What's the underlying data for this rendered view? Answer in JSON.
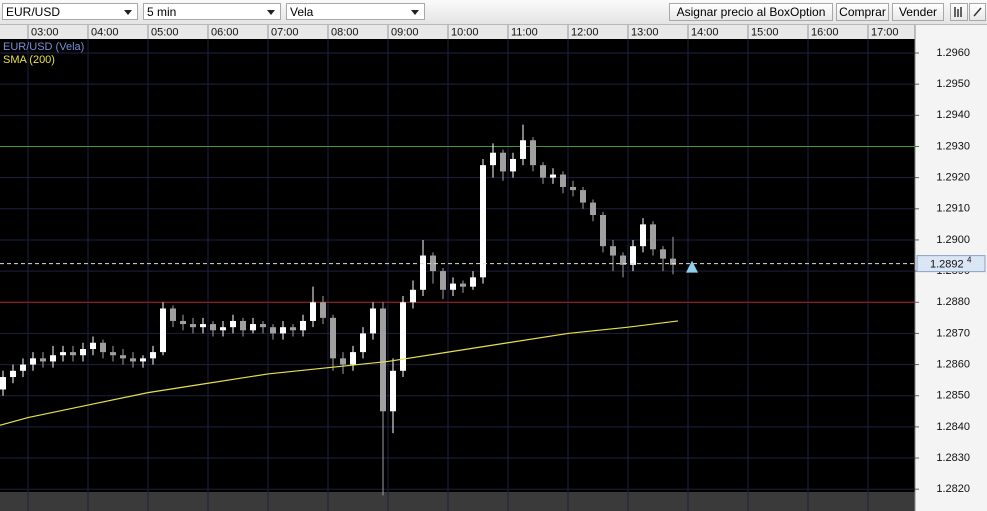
{
  "toolbar": {
    "symbol": "EUR/USD",
    "interval": "5 min",
    "chart_style": "Vela",
    "buttons": [
      "Asignar precio al BoxOption",
      "Comprar",
      "Vender"
    ]
  },
  "chart_data": {
    "type": "candlestick",
    "xticks": [
      "03:00",
      "04:00",
      "05:00",
      "06:00",
      "07:00",
      "08:00",
      "09:00",
      "10:00",
      "11:00",
      "12:00",
      "13:00",
      "14:00",
      "15:00",
      "16:00",
      "17:00"
    ],
    "ylim": [
      1.2813,
      1.29645
    ],
    "yticks": [
      {
        "value": 1.282,
        "label": "1.2820"
      },
      {
        "value": 1.283,
        "label": "1.2830"
      },
      {
        "value": 1.284,
        "label": "1.2840"
      },
      {
        "value": 1.285,
        "label": "1.2850"
      },
      {
        "value": 1.286,
        "label": "1.2860"
      },
      {
        "value": 1.287,
        "label": "1.2870"
      },
      {
        "value": 1.288,
        "label": "1.2880"
      },
      {
        "value": 1.289,
        "label": "1.2890"
      },
      {
        "value": 1.29,
        "label": "1.2900"
      },
      {
        "value": 1.291,
        "label": "1.2910"
      },
      {
        "value": 1.292,
        "label": "1.2920"
      },
      {
        "value": 1.293,
        "label": "1.2930"
      },
      {
        "value": 1.294,
        "label": "1.2940"
      },
      {
        "value": 1.295,
        "label": "1.2950"
      },
      {
        "value": 1.296,
        "label": "1.2960"
      }
    ],
    "grid": true,
    "series": [
      {
        "name": "EUR/USD (Vela)",
        "type": "candlestick",
        "color": "#7b8fd8",
        "up_color": "#ffffff",
        "down_color": "#a0a0a0",
        "x": [
          "02:20",
          "02:30",
          "02:40",
          "02:50",
          "03:00",
          "03:10",
          "03:20",
          "03:30",
          "03:40",
          "03:50",
          "04:00",
          "04:10",
          "04:20",
          "04:30",
          "04:40",
          "04:50",
          "05:00",
          "05:10",
          "05:20",
          "05:30",
          "05:40",
          "05:50",
          "06:00",
          "06:10",
          "06:20",
          "06:30",
          "06:40",
          "06:50",
          "07:00",
          "07:10",
          "07:20",
          "07:30",
          "07:40",
          "07:50",
          "08:00",
          "08:10",
          "08:20",
          "08:30",
          "08:40",
          "08:50",
          "09:00",
          "09:10",
          "09:20",
          "09:30",
          "09:40",
          "09:50",
          "10:00",
          "10:10",
          "10:20",
          "10:30",
          "10:40",
          "10:50",
          "11:00",
          "11:10",
          "11:20",
          "11:30",
          "11:40",
          "11:50",
          "12:00",
          "12:10",
          "12:20",
          "12:30",
          "12:40",
          "12:50",
          "13:00",
          "13:10",
          "13:20",
          "13:30",
          "13:40"
        ],
        "open": [
          1.2848,
          1.2852,
          1.2856,
          1.2858,
          1.286,
          1.2862,
          1.2861,
          1.2863,
          1.2864,
          1.2863,
          1.2865,
          1.2867,
          1.2864,
          1.2863,
          1.2862,
          1.2861,
          1.2862,
          1.2864,
          1.2878,
          1.2874,
          1.2873,
          1.2872,
          1.2873,
          1.2871,
          1.2872,
          1.2874,
          1.2871,
          1.2873,
          1.2872,
          1.287,
          1.2872,
          1.2871,
          1.2874,
          1.288,
          1.2875,
          1.2862,
          1.286,
          1.2864,
          1.287,
          1.2878,
          1.2845,
          1.2858,
          1.288,
          1.2884,
          1.2895,
          1.289,
          1.2884,
          1.2886,
          1.2885,
          1.2888,
          1.2924,
          1.2928,
          1.2922,
          1.2926,
          1.2932,
          1.2924,
          1.292,
          1.2921,
          1.2917,
          1.2916,
          1.2912,
          1.2908,
          1.2898,
          1.2895,
          1.2892,
          1.2898,
          1.2905,
          1.2897,
          1.2894
        ],
        "high": [
          1.2854,
          1.2858,
          1.286,
          1.2862,
          1.2864,
          1.2864,
          1.2866,
          1.2866,
          1.2866,
          1.2867,
          1.2869,
          1.2868,
          1.2866,
          1.2865,
          1.2864,
          1.2863,
          1.2866,
          1.288,
          1.2879,
          1.2876,
          1.2875,
          1.2875,
          1.2874,
          1.2874,
          1.2876,
          1.2875,
          1.2875,
          1.2874,
          1.2873,
          1.2874,
          1.2873,
          1.2876,
          1.2885,
          1.2882,
          1.2876,
          1.2864,
          1.2866,
          1.2872,
          1.288,
          1.288,
          1.2862,
          1.2882,
          1.2887,
          1.29,
          1.2896,
          1.2891,
          1.2888,
          1.2887,
          1.289,
          1.2926,
          1.2931,
          1.2929,
          1.2928,
          1.2937,
          1.2933,
          1.2925,
          1.2923,
          1.2922,
          1.2919,
          1.2917,
          1.2913,
          1.2909,
          1.29,
          1.2896,
          1.29,
          1.2907,
          1.2906,
          1.2898,
          1.2901
        ],
        "low": [
          1.2844,
          1.285,
          1.2854,
          1.2856,
          1.2858,
          1.2859,
          1.2859,
          1.2861,
          1.2861,
          1.2861,
          1.2863,
          1.2862,
          1.2861,
          1.286,
          1.2859,
          1.2859,
          1.286,
          1.2863,
          1.2872,
          1.2871,
          1.287,
          1.287,
          1.2869,
          1.2869,
          1.287,
          1.2869,
          1.287,
          1.287,
          1.2868,
          1.2868,
          1.2869,
          1.2869,
          1.2872,
          1.2873,
          1.2858,
          1.2857,
          1.2858,
          1.2862,
          1.2868,
          1.2818,
          1.2838,
          1.2856,
          1.2878,
          1.2882,
          1.2886,
          1.2881,
          1.2882,
          1.2883,
          1.2884,
          1.2886,
          1.292,
          1.2919,
          1.292,
          1.2924,
          1.2922,
          1.2918,
          1.2918,
          1.2915,
          1.2914,
          1.291,
          1.2906,
          1.2896,
          1.289,
          1.2888,
          1.289,
          1.2896,
          1.2895,
          1.289,
          1.2889
        ],
        "close": [
          1.2852,
          1.2856,
          1.2858,
          1.286,
          1.2862,
          1.2861,
          1.2863,
          1.2864,
          1.2863,
          1.2865,
          1.2867,
          1.2864,
          1.2863,
          1.2862,
          1.2861,
          1.2862,
          1.2864,
          1.2878,
          1.2874,
          1.2873,
          1.2872,
          1.2873,
          1.2871,
          1.2872,
          1.2874,
          1.2871,
          1.2873,
          1.2872,
          1.287,
          1.2872,
          1.2871,
          1.2874,
          1.288,
          1.2875,
          1.2862,
          1.286,
          1.2864,
          1.287,
          1.2878,
          1.2845,
          1.2858,
          1.288,
          1.2884,
          1.2895,
          1.289,
          1.2884,
          1.2886,
          1.2885,
          1.2888,
          1.2924,
          1.2928,
          1.2922,
          1.2926,
          1.2932,
          1.2924,
          1.292,
          1.2921,
          1.2917,
          1.2916,
          1.2912,
          1.2908,
          1.2898,
          1.2895,
          1.2892,
          1.2898,
          1.2905,
          1.2897,
          1.2894,
          1.2892
        ]
      },
      {
        "name": "SMA (200)",
        "type": "line",
        "color": "#e8e04a",
        "x": [
          "02:15",
          "03:00",
          "04:00",
          "05:00",
          "06:00",
          "07:00",
          "08:00",
          "09:00",
          "10:00",
          "11:00",
          "12:00",
          "13:00",
          "13:50"
        ],
        "values": [
          1.2839,
          1.2843,
          1.2847,
          1.2851,
          1.2854,
          1.2857,
          1.2859,
          1.2861,
          1.2864,
          1.2867,
          1.287,
          1.2872,
          1.2874
        ]
      }
    ],
    "hlines": [
      {
        "value": 1.293,
        "color": "#3c9a3c"
      },
      {
        "value": 1.288,
        "color": "#b02020"
      }
    ],
    "current_price": {
      "value": 1.28924,
      "label": "1.2892",
      "pip": "4"
    }
  }
}
